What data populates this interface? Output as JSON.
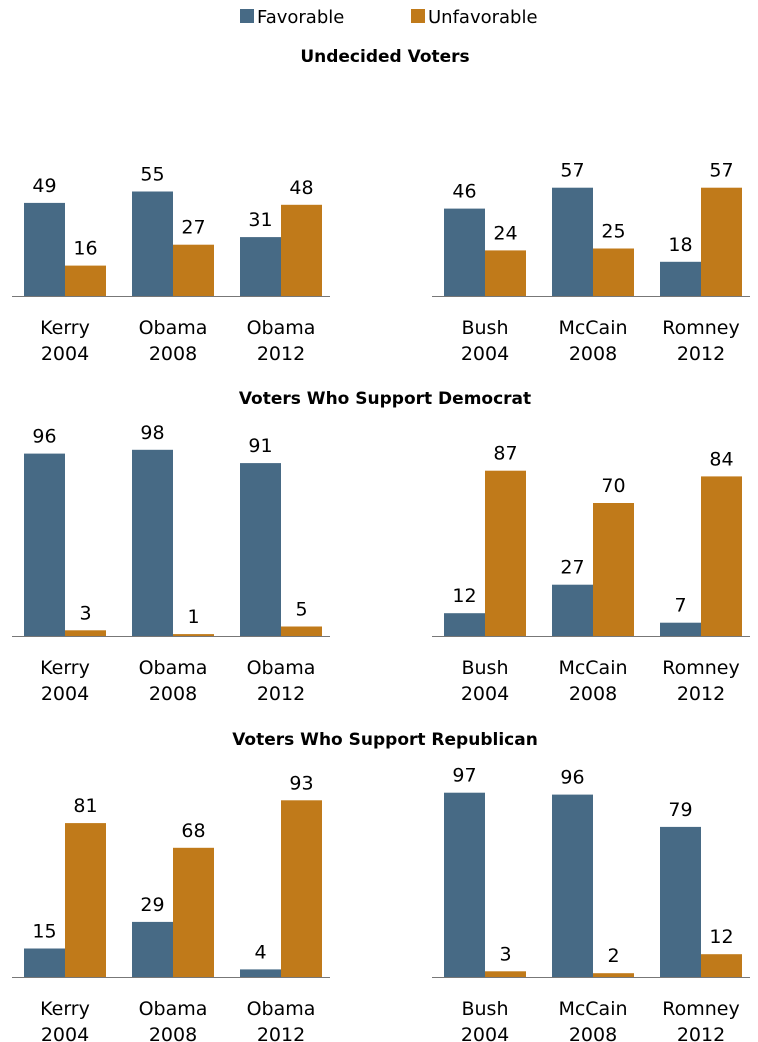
{
  "legend": {
    "favorable": "Favorable",
    "unfavorable": "Unfavorable"
  },
  "colors": {
    "favorable": "#476a85",
    "unfavorable": "#c07a1a",
    "axis": "#777777"
  },
  "chart_data": [
    {
      "type": "bar",
      "title": "Undecided Voters",
      "categories": [
        [
          "Kerry",
          "2004"
        ],
        [
          "Obama",
          "2008"
        ],
        [
          "Obama",
          "2012"
        ]
      ],
      "series": [
        {
          "name": "Favorable",
          "values": [
            49,
            55,
            31
          ]
        },
        {
          "name": "Unfavorable",
          "values": [
            16,
            27,
            48
          ]
        }
      ],
      "ylim": [
        0,
        100
      ]
    },
    {
      "type": "bar",
      "title": "",
      "categories": [
        [
          "Bush",
          "2004"
        ],
        [
          "McCain",
          "2008"
        ],
        [
          "Romney",
          "2012"
        ]
      ],
      "series": [
        {
          "name": "Favorable",
          "values": [
            46,
            57,
            18
          ]
        },
        {
          "name": "Unfavorable",
          "values": [
            24,
            25,
            57
          ]
        }
      ],
      "ylim": [
        0,
        100
      ]
    },
    {
      "type": "bar",
      "title": "Voters Who Support Democrat",
      "categories": [
        [
          "Kerry",
          "2004"
        ],
        [
          "Obama",
          "2008"
        ],
        [
          "Obama",
          "2012"
        ]
      ],
      "series": [
        {
          "name": "Favorable",
          "values": [
            96,
            98,
            91
          ]
        },
        {
          "name": "Unfavorable",
          "values": [
            3,
            1,
            5
          ]
        }
      ],
      "ylim": [
        0,
        100
      ]
    },
    {
      "type": "bar",
      "title": "",
      "categories": [
        [
          "Bush",
          "2004"
        ],
        [
          "McCain",
          "2008"
        ],
        [
          "Romney",
          "2012"
        ]
      ],
      "series": [
        {
          "name": "Favorable",
          "values": [
            12,
            27,
            7
          ]
        },
        {
          "name": "Unfavorable",
          "values": [
            87,
            70,
            84
          ]
        }
      ],
      "ylim": [
        0,
        100
      ]
    },
    {
      "type": "bar",
      "title": "Voters Who Support Republican",
      "categories": [
        [
          "Kerry",
          "2004"
        ],
        [
          "Obama",
          "2008"
        ],
        [
          "Obama",
          "2012"
        ]
      ],
      "series": [
        {
          "name": "Favorable",
          "values": [
            15,
            29,
            4
          ]
        },
        {
          "name": "Unfavorable",
          "values": [
            81,
            68,
            93
          ]
        }
      ],
      "ylim": [
        0,
        100
      ]
    },
    {
      "type": "bar",
      "title": "",
      "categories": [
        [
          "Bush",
          "2004"
        ],
        [
          "McCain",
          "2008"
        ],
        [
          "Romney",
          "2012"
        ]
      ],
      "series": [
        {
          "name": "Favorable",
          "values": [
            97,
            96,
            79
          ]
        },
        {
          "name": "Unfavorable",
          "values": [
            3,
            2,
            12
          ]
        }
      ],
      "ylim": [
        0,
        100
      ]
    }
  ]
}
